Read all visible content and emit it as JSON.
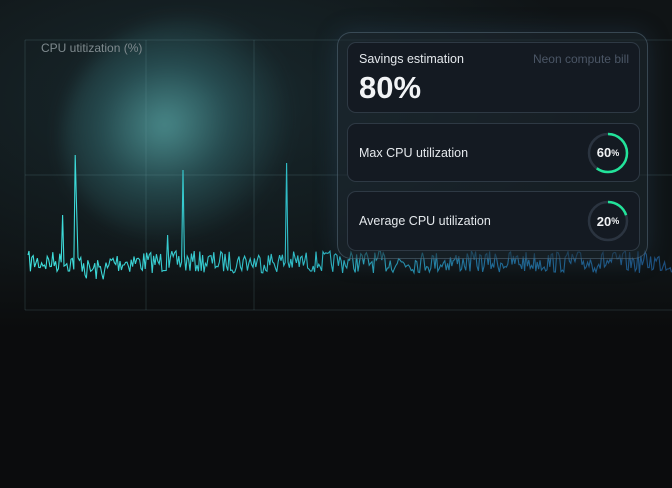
{
  "chart": {
    "ylabel": "CPU utitization (%)",
    "line_color": "#35d3d3"
  },
  "savings": {
    "title": "Savings estimation",
    "value": "80%",
    "note": "Neon compute bill"
  },
  "max_cpu": {
    "label": "Max CPU utilization",
    "value": "60",
    "unit": "%",
    "fraction": 0.6
  },
  "avg_cpu": {
    "label": "Average CPU utilization",
    "value": "20",
    "unit": "%",
    "fraction": 0.2
  },
  "colors": {
    "accent": "#22e39a",
    "ring_track": "#2b3440"
  }
}
